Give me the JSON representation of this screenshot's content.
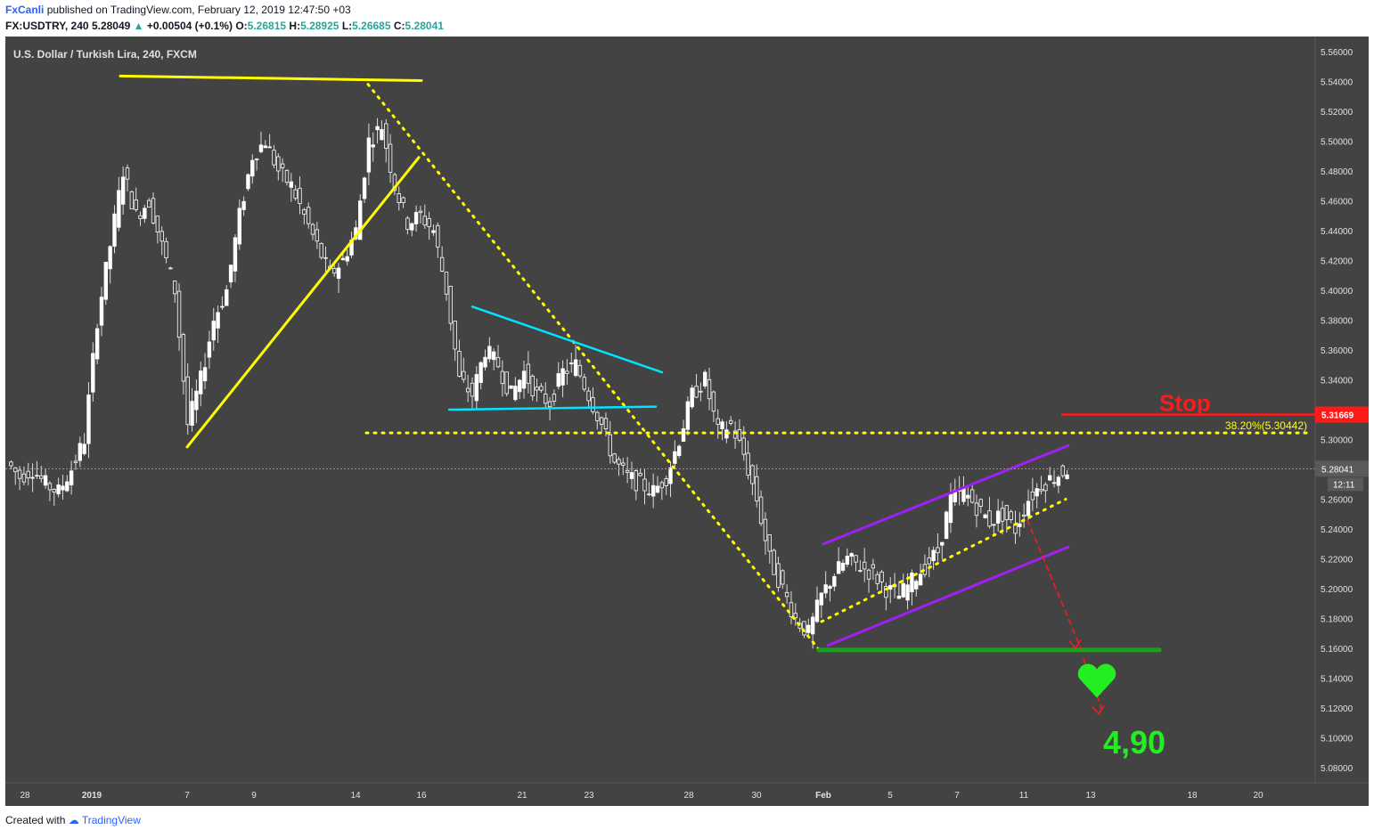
{
  "header": {
    "user": "FxCanli",
    "published_text": "published on TradingView.com, February 12, 2019 12:47:50 +03",
    "symbol": "FX:USDTRY, 240",
    "last": "5.28049",
    "change_arrow": "▲",
    "change": "+0.00504 (+0.1%)",
    "o_label": "O:",
    "o": "5.26815",
    "h_label": "H:",
    "h": "5.28925",
    "l_label": "L:",
    "l": "5.26685",
    "c_label": "C:",
    "c": "5.28041"
  },
  "footer": {
    "created_with": "Created with",
    "brand": "TradingView"
  },
  "colors": {
    "background": "#434343",
    "candle_up": "#ffffff",
    "candle_down": "#ffffff",
    "wedge": "#ffff00",
    "triangle": "#00e5ff",
    "channel": "#a020f0",
    "support": "#1aa11a",
    "stop": "#ff1a1a",
    "target": "#22ee22"
  },
  "chart_data": {
    "type": "candlestick",
    "title": "U.S. Dollar / Turkish Lira, 240, FXCM",
    "ylim": [
      5.07,
      5.57
    ],
    "y_ticks": [
      "5.56000",
      "5.54000",
      "5.52000",
      "5.50000",
      "5.48000",
      "5.46000",
      "5.44000",
      "5.42000",
      "5.40000",
      "5.38000",
      "5.36000",
      "5.34000",
      "5.32000",
      "5.30000",
      "5.28041",
      "5.26000",
      "5.24000",
      "5.22000",
      "5.20000",
      "5.18000",
      "5.16000",
      "5.14000",
      "5.12000",
      "5.10000",
      "5.08000"
    ],
    "x_ticks": [
      "28",
      "2019",
      "7",
      "9",
      "14",
      "16",
      "21",
      "23",
      "28",
      "30",
      "Feb",
      "5",
      "7",
      "11",
      "13",
      "18",
      "20"
    ],
    "current_price": "5.28041",
    "countdown": "12:11",
    "stop_price": "5.31669",
    "fib_label": "38.20%(5.30442)",
    "stop_label": "Stop",
    "target_label": "4,90",
    "price_path": [
      5.285,
      5.275,
      5.28,
      5.27,
      5.265,
      5.28,
      5.3,
      5.38,
      5.43,
      5.48,
      5.45,
      5.46,
      5.43,
      5.4,
      5.31,
      5.34,
      5.38,
      5.4,
      5.45,
      5.49,
      5.5,
      5.48,
      5.47,
      5.45,
      5.43,
      5.41,
      5.42,
      5.44,
      5.5,
      5.51,
      5.47,
      5.445,
      5.45,
      5.44,
      5.4,
      5.34,
      5.33,
      5.36,
      5.35,
      5.33,
      5.345,
      5.33,
      5.325,
      5.345,
      5.35,
      5.33,
      5.31,
      5.285,
      5.275,
      5.27,
      5.265,
      5.275,
      5.3,
      5.33,
      5.34,
      5.305,
      5.31,
      5.29,
      5.26,
      5.22,
      5.2,
      5.18,
      5.17,
      5.195,
      5.21,
      5.22,
      5.215,
      5.21,
      5.2,
      5.195,
      5.205,
      5.215,
      5.225,
      5.26,
      5.265,
      5.255,
      5.245,
      5.25,
      5.24,
      5.26,
      5.27,
      5.275,
      5.28
    ]
  }
}
